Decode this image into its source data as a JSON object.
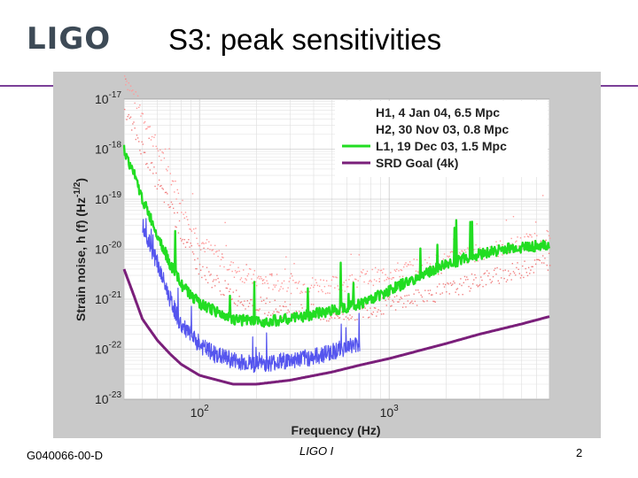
{
  "slide": {
    "logo": "LIGO",
    "title": "S3: peak sensitivities",
    "footer_id": "G040066-00-D",
    "footer_center": "LIGO I",
    "page_number": "2",
    "accent_color": "#7b3f98"
  },
  "chart_data": {
    "type": "line",
    "title": "",
    "xlabel": "Frequency (Hz)",
    "ylabel": "Strain noise, h (f) (Hz^-1/2)",
    "x_scale": "log",
    "y_scale": "log",
    "xlim": [
      40,
      7000
    ],
    "ylim": [
      1e-23,
      1e-17
    ],
    "x_ticks": [
      {
        "value": 100,
        "base": "10",
        "exp": "2"
      },
      {
        "value": 1000,
        "base": "10",
        "exp": "3"
      }
    ],
    "y_ticks": [
      {
        "value": 1e-17,
        "base": "10",
        "exp": "-17"
      },
      {
        "value": 1e-18,
        "base": "10",
        "exp": "-18"
      },
      {
        "value": 1e-19,
        "base": "10",
        "exp": "-19"
      },
      {
        "value": 1e-20,
        "base": "10",
        "exp": "-20"
      },
      {
        "value": 1e-21,
        "base": "10",
        "exp": "-21"
      },
      {
        "value": 1e-22,
        "base": "10",
        "exp": "-22"
      },
      {
        "value": 1e-23,
        "base": "10",
        "exp": "-23"
      }
    ],
    "grid": true,
    "legend_position": "top-right",
    "series": [
      {
        "name": "H1, 4 Jan 04, 6.5 Mpc",
        "color": "#f08080",
        "style": "noisy-dots",
        "x": [
          40,
          50,
          60,
          70,
          80,
          100,
          150,
          200,
          300,
          500,
          700,
          1000,
          2000,
          3000,
          5000,
          7000
        ],
        "y": [
          6e-18,
          1e-18,
          2e-19,
          7e-20,
          2e-20,
          4e-21,
          1.2e-21,
          8e-22,
          6e-22,
          5e-22,
          6e-22,
          8e-22,
          1.5e-21,
          2.5e-21,
          4e-21,
          6e-21
        ]
      },
      {
        "name": "H2, 30 Nov 03, 0.8 Mpc",
        "color": "#ff9a9a",
        "style": "noisy-dots",
        "x": [
          40,
          50,
          60,
          70,
          80,
          100,
          150,
          200,
          300,
          500,
          700,
          1000,
          2000,
          3000,
          5000,
          7000
        ],
        "y": [
          3e-17,
          5e-18,
          1e-18,
          3e-19,
          8e-20,
          1.5e-20,
          4e-21,
          2.5e-21,
          2e-21,
          2e-21,
          2.5e-21,
          3.5e-21,
          6e-21,
          9e-21,
          1.3e-20,
          1.8e-20
        ]
      },
      {
        "name": "L1, 19 Dec 03, 1.5 Mpc",
        "color": "#22dd22",
        "style": "thick-noisy",
        "x": [
          40,
          45,
          50,
          60,
          70,
          80,
          100,
          150,
          200,
          300,
          500,
          700,
          1000,
          1500,
          2000,
          3000,
          4000,
          5000,
          7000
        ],
        "y": [
          1e-18,
          3e-19,
          1e-19,
          2e-20,
          5e-21,
          2e-21,
          8e-22,
          4e-22,
          3.5e-22,
          4e-22,
          6e-22,
          8e-22,
          1.5e-21,
          3e-21,
          5e-21,
          8e-21,
          1e-20,
          1.1e-20,
          1.2e-20
        ]
      },
      {
        "name": "H1 (blue trace)",
        "color": "#5555ee",
        "style": "noisy",
        "x": [
          50,
          60,
          70,
          80,
          100,
          120,
          150,
          200,
          300,
          400,
          500,
          600,
          700
        ],
        "y": [
          3e-20,
          5e-21,
          1e-21,
          3e-22,
          1.2e-22,
          8e-23,
          6e-23,
          5e-23,
          6e-23,
          7e-23,
          9e-23,
          1.1e-22,
          1.3e-22
        ]
      },
      {
        "name": "SRD Goal (4k)",
        "color": "#7a1f7a",
        "style": "smooth",
        "x": [
          40,
          45,
          50,
          60,
          70,
          80,
          100,
          150,
          200,
          300,
          500,
          700,
          1000,
          2000,
          3000,
          5000,
          7000
        ],
        "y": [
          4e-21,
          1.2e-21,
          4e-22,
          1.5e-22,
          8e-23,
          5e-23,
          3e-23,
          2e-23,
          2e-23,
          2.4e-23,
          3.5e-23,
          4.8e-23,
          6.5e-23,
          1.3e-22,
          2e-22,
          3.2e-22,
          4.5e-22
        ]
      }
    ],
    "legend_entries": [
      {
        "label": "H1, 4 Jan 04, 6.5 Mpc",
        "color": ""
      },
      {
        "label": "H2, 30 Nov 03, 0.8 Mpc",
        "color": ""
      },
      {
        "label": "L1, 19 Dec 03, 1.5 Mpc",
        "color": "#22dd22"
      },
      {
        "label": "SRD Goal (4k)",
        "color": "#7a1f7a"
      }
    ]
  }
}
